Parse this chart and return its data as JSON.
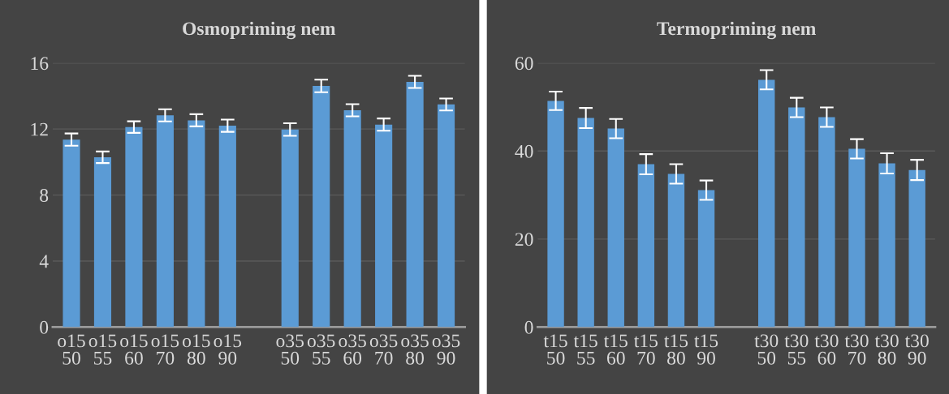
{
  "chart_data": [
    {
      "type": "bar",
      "title": "Osmopriming nem",
      "categories": [
        "o15\n50",
        "o15\n55",
        "o15\n60",
        "o15\n70",
        "o15\n80",
        "o15\n90",
        null,
        "o35\n50",
        "o35\n55",
        "o35\n60",
        "o35\n70",
        "o35\n80",
        "o35\n90"
      ],
      "values": [
        11.36,
        10.29,
        12.12,
        12.83,
        12.53,
        12.2,
        null,
        11.97,
        14.61,
        13.14,
        12.27,
        14.86,
        13.49
      ],
      "errors": [
        0.37,
        0.35,
        0.35,
        0.37,
        0.37,
        0.37,
        null,
        0.38,
        0.38,
        0.37,
        0.37,
        0.37,
        0.36
      ],
      "color": "#5b9bd5",
      "ylim": [
        0,
        16
      ],
      "yticks": [
        0,
        4,
        8,
        12,
        16
      ],
      "grid": "y"
    },
    {
      "type": "bar",
      "title": "Termopriming nem",
      "categories": [
        "t15\n50",
        "t15\n55",
        "t15\n60",
        "t15\n70",
        "t15\n80",
        "t15\n90",
        null,
        "t30\n50",
        "t30\n55",
        "t30\n60",
        "t30\n70",
        "t30\n80",
        "t30\n90"
      ],
      "values": [
        51.4,
        47.5,
        45.1,
        37.0,
        34.8,
        31.1,
        null,
        56.2,
        49.9,
        47.7,
        40.5,
        37.2,
        35.7
      ],
      "errors": [
        2.1,
        2.3,
        2.2,
        2.3,
        2.2,
        2.2,
        null,
        2.2,
        2.2,
        2.2,
        2.2,
        2.3,
        2.3
      ],
      "color": "#5b9bd5",
      "ylim": [
        0,
        60
      ],
      "yticks": [
        0,
        20,
        40,
        60
      ],
      "grid": "y"
    }
  ]
}
